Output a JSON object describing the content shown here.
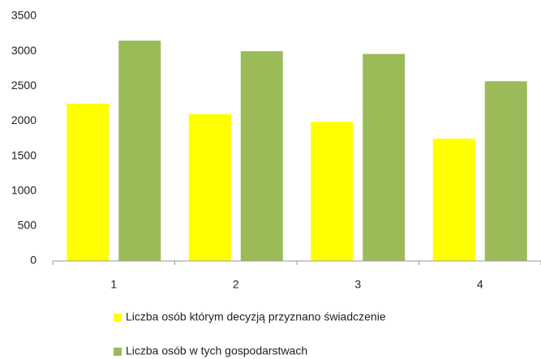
{
  "chart_data": {
    "type": "bar",
    "categories": [
      "1",
      "2",
      "3",
      "4"
    ],
    "series": [
      {
        "name": "Liczba osób którym decyzją przyznano świadczenie",
        "color": "#ffff00",
        "values": [
          2250,
          2100,
          1990,
          1750
        ]
      },
      {
        "name": "Liczba osób w tych gospodarstwach",
        "color": "#9bbb59",
        "values": [
          3150,
          3000,
          2960,
          2570
        ]
      }
    ],
    "ylim": [
      0,
      3500
    ],
    "yticks": [
      0,
      500,
      1000,
      1500,
      2000,
      2500,
      3000,
      3500
    ],
    "grid": false,
    "legend": "bottom"
  }
}
